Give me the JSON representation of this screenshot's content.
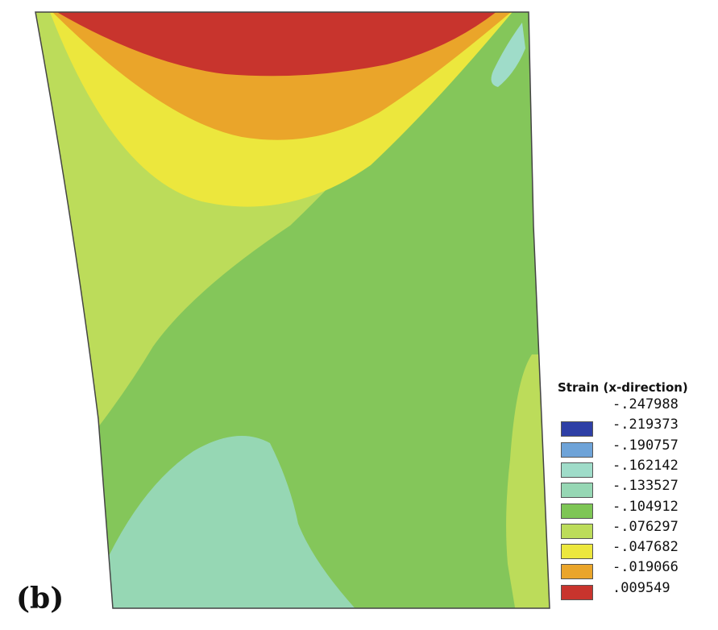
{
  "panel_label": "(b)",
  "legend": {
    "title": "Strain (x-direction)",
    "ticks": [
      "-.247988",
      "-.219373",
      "-.190757",
      "-.162142",
      "-.133527",
      "-.104912",
      "-.076297",
      "-.047682",
      "-.019066",
      ".009549"
    ],
    "colors": [
      "#2e3fa6",
      "#6ea3d8",
      "#9fdcc9",
      "#96d7b4",
      "#7ec655",
      "#bcdc5a",
      "#ece73d",
      "#eaa52a",
      "#c8342d"
    ]
  },
  "contour_colors": {
    "dark_green": "#84c65a",
    "light_green": "#bcdc5a",
    "yellow": "#ece73d",
    "orange": "#eaa52a",
    "red": "#c8342d",
    "teal": "#96d7b4",
    "light_teal": "#9fdcc9"
  }
}
